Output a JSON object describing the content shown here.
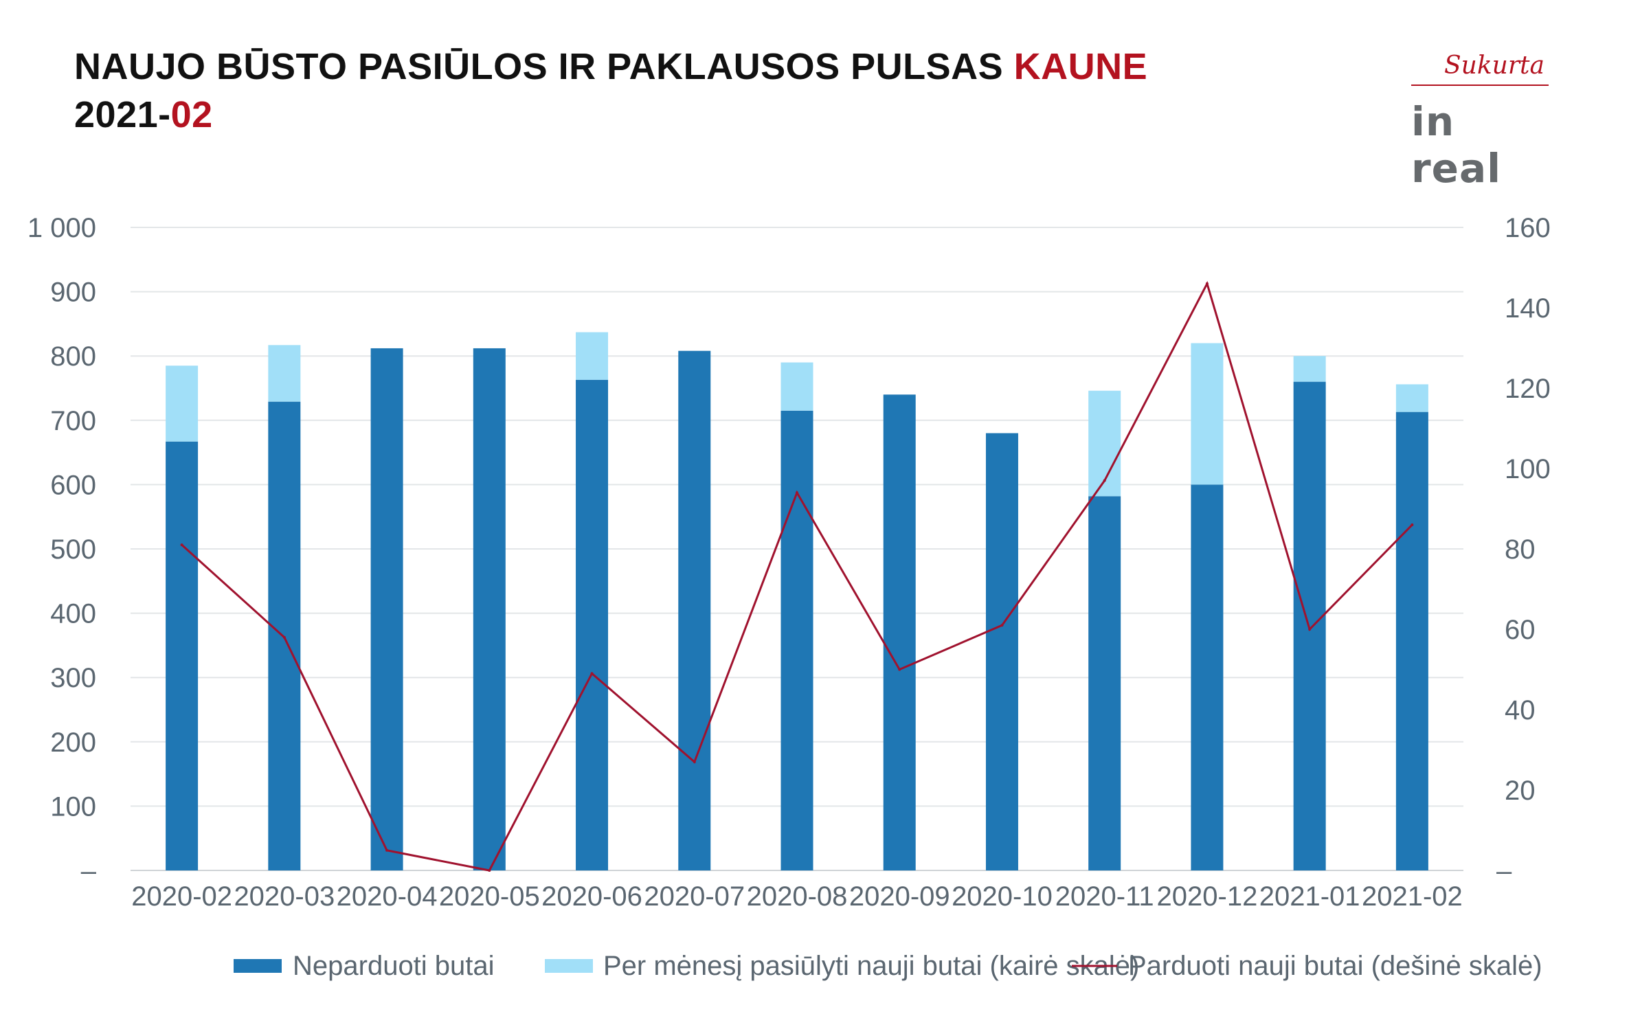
{
  "header": {
    "title_main": "NAUJO BŪSTO PASIŪLOS IR PAKLAUSOS PULSAS ",
    "title_accent": "KAUNE",
    "subtitle_main": "2021-",
    "subtitle_accent": "02"
  },
  "logo": {
    "script_text": "Sukurta",
    "brand_text": "in real"
  },
  "colors": {
    "unsold": "#1f77b4",
    "offered": "#a1dff8",
    "sold": "#a0122e",
    "accent": "#b3121f",
    "grid": "#e3e6e8",
    "axis_text": "#5a6670"
  },
  "chart_data": {
    "type": "bar",
    "stacked": true,
    "categories": [
      "2020-02",
      "2020-03",
      "2020-04",
      "2020-05",
      "2020-06",
      "2020-07",
      "2020-08",
      "2020-09",
      "2020-10",
      "2020-11",
      "2020-12",
      "2021-01",
      "2021-02"
    ],
    "series": [
      {
        "name": "Neparduoti butai",
        "type": "bar",
        "axis": "left",
        "values": [
          667,
          729,
          812,
          812,
          763,
          808,
          715,
          740,
          680,
          582,
          600,
          760,
          713
        ]
      },
      {
        "name": "Per mėnesį pasiūlyti nauji butai (kairė skalė)",
        "type": "bar",
        "axis": "left",
        "values": [
          118,
          88,
          0,
          0,
          74,
          0,
          75,
          0,
          0,
          164,
          220,
          40,
          43
        ]
      },
      {
        "name": "Parduoti nauji butai (dešinė skalė)",
        "type": "line",
        "axis": "right",
        "values": [
          81,
          58,
          5,
          0,
          49,
          27,
          94,
          50,
          61,
          97,
          146,
          60,
          86
        ]
      }
    ],
    "y_left": {
      "ylim": [
        0,
        1000
      ],
      "ticks": [
        0,
        100,
        200,
        300,
        400,
        500,
        600,
        700,
        800,
        900,
        1000
      ],
      "tick_labels": [
        "–",
        "100",
        "200",
        "300",
        "400",
        "500",
        "600",
        "700",
        "800",
        "900",
        "1 000"
      ]
    },
    "y_right": {
      "ylim": [
        0,
        160
      ],
      "ticks": [
        0,
        20,
        40,
        60,
        80,
        100,
        120,
        140,
        160
      ],
      "tick_labels": [
        "–",
        "20",
        "40",
        "60",
        "80",
        "100",
        "120",
        "140",
        "160"
      ]
    },
    "grid": true,
    "legend_position": "bottom"
  }
}
